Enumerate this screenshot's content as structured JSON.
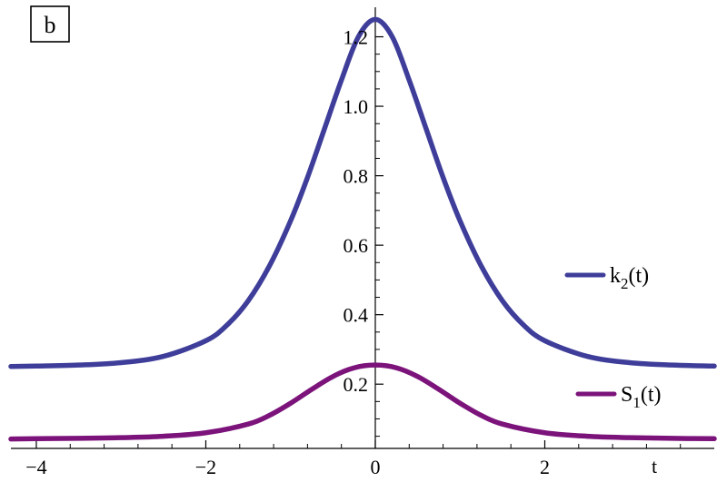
{
  "panel_label": "b",
  "chart_data": {
    "type": "line",
    "xlabel": "t",
    "ylabel": "",
    "xlim": [
      -4.3,
      4.0
    ],
    "ylim": [
      0.015,
      1.285
    ],
    "x_ticks": [
      {
        "value": -4,
        "label": "−4"
      },
      {
        "value": -2,
        "label": "−2"
      },
      {
        "value": 0,
        "label": "0"
      },
      {
        "value": 2,
        "label": "2"
      }
    ],
    "y_ticks": [
      {
        "value": 0.2,
        "label": "0.2"
      },
      {
        "value": 0.4,
        "label": "0.4"
      },
      {
        "value": 0.6,
        "label": "0.6"
      },
      {
        "value": 0.8,
        "label": "0.8"
      },
      {
        "value": 1.0,
        "label": "1.0"
      },
      {
        "value": 1.2,
        "label": "1.2"
      }
    ],
    "grid": false,
    "legend_placement": "right",
    "series": [
      {
        "name": "k2(t)",
        "name_main": "k",
        "name_sub": "2",
        "name_tail": "(t)",
        "color": "#3e3e9a",
        "x": [
          -4.3,
          -4.0,
          -3.5,
          -3.0,
          -2.5,
          -2.0,
          -1.75,
          -1.5,
          -1.25,
          -1.0,
          -0.8,
          -0.6,
          -0.4,
          -0.2,
          0.0,
          0.2,
          0.4,
          0.6,
          0.8,
          1.0,
          1.25,
          1.5,
          1.75,
          2.0,
          2.5,
          3.0,
          3.5,
          4.0
        ],
        "values": [
          0.251,
          0.252,
          0.255,
          0.262,
          0.28,
          0.325,
          0.37,
          0.44,
          0.54,
          0.67,
          0.795,
          0.935,
          1.075,
          1.2,
          1.25,
          1.2,
          1.075,
          0.935,
          0.795,
          0.67,
          0.54,
          0.44,
          0.37,
          0.325,
          0.28,
          0.262,
          0.255,
          0.252
        ]
      },
      {
        "name": "S1(t)",
        "name_main": "S",
        "name_sub": "1",
        "name_tail": "(t)",
        "color": "#7b137b",
        "x": [
          -4.3,
          -4.0,
          -3.5,
          -3.0,
          -2.5,
          -2.0,
          -1.5,
          -1.25,
          -1.0,
          -0.75,
          -0.5,
          -0.25,
          0.0,
          0.25,
          0.5,
          0.75,
          1.0,
          1.25,
          1.5,
          2.0,
          2.5,
          3.0,
          3.5,
          4.0
        ],
        "values": [
          0.042,
          0.043,
          0.044,
          0.046,
          0.05,
          0.06,
          0.085,
          0.11,
          0.145,
          0.185,
          0.222,
          0.247,
          0.255,
          0.247,
          0.222,
          0.185,
          0.145,
          0.11,
          0.085,
          0.06,
          0.05,
          0.046,
          0.044,
          0.043
        ]
      }
    ]
  }
}
